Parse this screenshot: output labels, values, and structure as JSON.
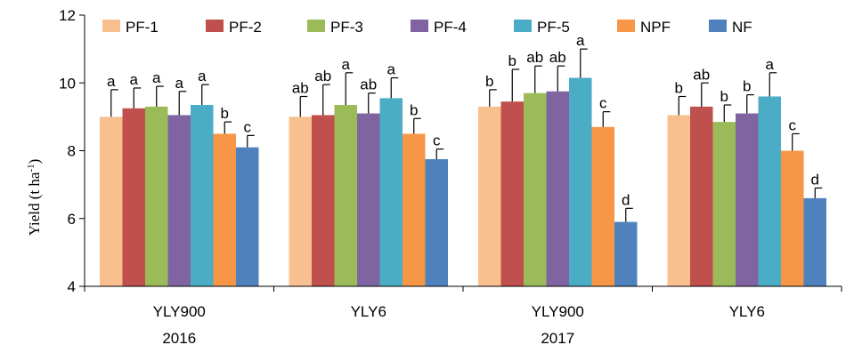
{
  "chart_data": {
    "type": "bar",
    "ylabel": "Yield (t ha",
    "ylabel_sup": "-1",
    "ylabel_suffix": ")",
    "ylim": [
      4,
      12
    ],
    "yticks": [
      4,
      6,
      8,
      10,
      12
    ],
    "grid": false,
    "legend_position": "top",
    "categories": [
      {
        "line1": "YLY900",
        "line2": "2016"
      },
      {
        "line1": "YLY6",
        "line2": ""
      },
      {
        "line1": "YLY900",
        "line2": "2017"
      },
      {
        "line1": "YLY6",
        "line2": ""
      }
    ],
    "series": [
      {
        "name": "PF-1",
        "color": "#F9C08F",
        "values": [
          9.0,
          9.0,
          9.3,
          9.05
        ],
        "errors": [
          0.8,
          0.6,
          0.5,
          0.55
        ],
        "letters": [
          "a",
          "ab",
          "b",
          "b"
        ]
      },
      {
        "name": "PF-2",
        "color": "#C0504D",
        "values": [
          9.25,
          9.05,
          9.45,
          9.3
        ],
        "errors": [
          0.6,
          0.9,
          0.95,
          0.7
        ],
        "letters": [
          "a",
          "ab",
          "b",
          "ab"
        ]
      },
      {
        "name": "PF-3",
        "color": "#9BBB59",
        "values": [
          9.3,
          9.35,
          9.7,
          8.85
        ],
        "errors": [
          0.6,
          0.95,
          0.8,
          0.5
        ],
        "letters": [
          "a",
          "a",
          "ab",
          "b"
        ]
      },
      {
        "name": "PF-4",
        "color": "#8064A2",
        "values": [
          9.05,
          9.1,
          9.75,
          9.1
        ],
        "errors": [
          0.7,
          0.6,
          0.75,
          0.55
        ],
        "letters": [
          "a",
          "ab",
          "ab",
          "b"
        ]
      },
      {
        "name": "PF-5",
        "color": "#4BACC6",
        "values": [
          9.35,
          9.55,
          10.15,
          9.6
        ],
        "errors": [
          0.6,
          0.6,
          0.85,
          0.7
        ],
        "letters": [
          "a",
          "a",
          "a",
          "a"
        ]
      },
      {
        "name": "NPF",
        "color": "#F79646",
        "values": [
          8.5,
          8.5,
          8.7,
          8.0
        ],
        "errors": [
          0.35,
          0.45,
          0.45,
          0.5
        ],
        "letters": [
          "b",
          "b",
          "c",
          "c"
        ]
      },
      {
        "name": "NF",
        "color": "#4F81BD",
        "values": [
          8.1,
          7.75,
          5.9,
          6.6
        ],
        "errors": [
          0.35,
          0.3,
          0.4,
          0.3
        ],
        "letters": [
          "c",
          "c",
          "d",
          "d"
        ]
      }
    ]
  }
}
